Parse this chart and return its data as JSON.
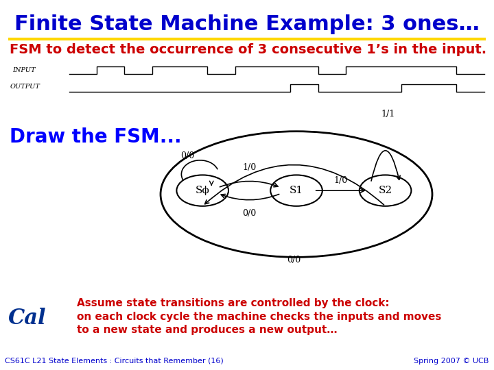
{
  "title": "Finite State Machine Example: 3 ones…",
  "title_color": "#0000CC",
  "title_fontsize": 22,
  "subtitle": "FSM to detect the occurrence of 3 consecutive 1’s in the input.",
  "subtitle_color": "#CC0000",
  "subtitle_fontsize": 14,
  "draw_label": "Draw the FSM...",
  "draw_label_color": "#0000FF",
  "draw_label_fontsize": 20,
  "separator_color": "#FFD700",
  "states": [
    "Sϕ",
    "S1",
    "S2"
  ],
  "footer_left": "CS61C L21 State Elements : Circuits that Remember (16)",
  "footer_right": "Spring 2007 © UCB",
  "footer_color": "#0000CC",
  "footer_fontsize": 8,
  "assume_text": "Assume state transitions are controlled by the clock:\non each clock cycle the machine checks the inputs and moves\nto a new state and produces a new output…",
  "assume_color": "#CC0000",
  "assume_fontsize": 11
}
